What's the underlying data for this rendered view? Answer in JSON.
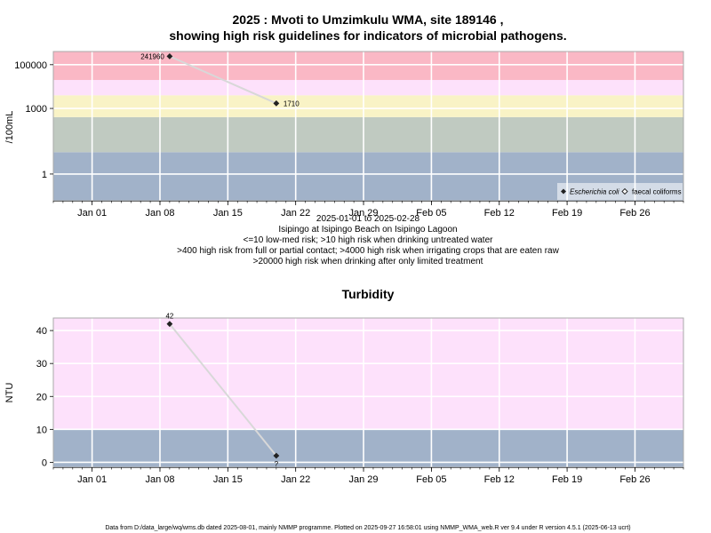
{
  "titles": {
    "main_line1": "2025 : Mvoti to Umzimkulu WMA, site 189146 ,",
    "main_line2": "showing high risk guidelines for indicators of microbial pathogens."
  },
  "notes": [
    "2025-01-01 to 2025-02-28",
    "Isipingo at Isipingo Beach on Isipingo Lagoon",
    "<=10 low-med risk; >10 high risk when drinking untreated water",
    ">400 high risk from full or partial contact; >4000 high risk when irrigating crops that are eaten raw",
    ">20000 high risk when drinking after only limited treatment"
  ],
  "footer": "Data from D:/data_large/wq/wms.db dated 2025-08-01, mainly NMMP programme. Plotted on 2025-09-27 16:58:01 using NMMP_WMA_web.R ver 9.4 under R version 4.5.1 (2025-06-13 ucrt)",
  "legend": {
    "placement": "bottom-right",
    "items": [
      {
        "label": "Escherichia coli",
        "marker": "filled-diamond",
        "italic": true
      },
      {
        "label": "faecal coliforms",
        "marker": "open-diamond",
        "italic": false
      }
    ]
  },
  "colors": {
    "band_low": "#a1b2c9",
    "band_10": "#c0cac1",
    "band_400": "#f9f3c6",
    "band_4000": "#fde1fb",
    "band_20000": "#fab8c5",
    "panel_border": "#a9a9a9",
    "trend_line": "#d8d8d8",
    "marker": "#222222"
  },
  "chart_data": [
    {
      "type": "scatter",
      "title": "",
      "xlabel": "",
      "ylabel": "/100mL",
      "yscale": "log",
      "xlim": [
        "2024-12-28",
        "2025-03-03"
      ],
      "ylim": [
        0.06,
        400000
      ],
      "x_ticks": [
        {
          "date": "2025-01-01",
          "label": "Jan 01"
        },
        {
          "date": "2025-01-08",
          "label": "Jan 08"
        },
        {
          "date": "2025-01-15",
          "label": "Jan 15"
        },
        {
          "date": "2025-01-22",
          "label": "Jan 22"
        },
        {
          "date": "2025-01-29",
          "label": "Jan 29"
        },
        {
          "date": "2025-02-05",
          "label": "Feb 05"
        },
        {
          "date": "2025-02-12",
          "label": "Feb 12"
        },
        {
          "date": "2025-02-19",
          "label": "Feb 19"
        },
        {
          "date": "2025-02-26",
          "label": "Feb 26"
        }
      ],
      "y_ticks": [
        {
          "value": 1,
          "label": "1"
        },
        {
          "value": 1000,
          "label": "1000"
        },
        {
          "value": 100000,
          "label": "100000"
        }
      ],
      "grid": true,
      "bands": [
        {
          "from": 0.06,
          "to": 10,
          "color_key": "band_low"
        },
        {
          "from": 10,
          "to": 400,
          "color_key": "band_10"
        },
        {
          "from": 400,
          "to": 4000,
          "color_key": "band_400"
        },
        {
          "from": 4000,
          "to": 20000,
          "color_key": "band_4000"
        },
        {
          "from": 20000,
          "to": 400000,
          "color_key": "band_20000"
        }
      ],
      "series": [
        {
          "name": "Escherichia coli",
          "marker": "filled-diamond",
          "points": [
            {
              "date": "2025-01-09",
              "value": 241960,
              "label": "241960",
              "label_side": "left"
            },
            {
              "date": "2025-01-20",
              "value": 1710,
              "label": "1710",
              "label_side": "right"
            }
          ]
        }
      ]
    },
    {
      "type": "scatter",
      "title": "Turbidity",
      "xlabel": "",
      "ylabel": "NTU",
      "yscale": "linear",
      "xlim": [
        "2024-12-28",
        "2025-03-03"
      ],
      "ylim": [
        -1.5,
        43.8
      ],
      "x_ticks": [
        {
          "date": "2025-01-01",
          "label": "Jan 01"
        },
        {
          "date": "2025-01-08",
          "label": "Jan 08"
        },
        {
          "date": "2025-01-15",
          "label": "Jan 15"
        },
        {
          "date": "2025-01-22",
          "label": "Jan 22"
        },
        {
          "date": "2025-01-29",
          "label": "Jan 29"
        },
        {
          "date": "2025-02-05",
          "label": "Feb 05"
        },
        {
          "date": "2025-02-12",
          "label": "Feb 12"
        },
        {
          "date": "2025-02-19",
          "label": "Feb 19"
        },
        {
          "date": "2025-02-26",
          "label": "Feb 26"
        }
      ],
      "y_ticks": [
        {
          "value": 0,
          "label": "0"
        },
        {
          "value": 10,
          "label": "10"
        },
        {
          "value": 20,
          "label": "20"
        },
        {
          "value": 30,
          "label": "30"
        },
        {
          "value": 40,
          "label": "40"
        }
      ],
      "grid": true,
      "bands": [
        {
          "from": -1.5,
          "to": 10,
          "color_key": "band_low"
        },
        {
          "from": 10,
          "to": 43.8,
          "color_key": "band_4000"
        }
      ],
      "series": [
        {
          "name": "",
          "marker": "filled-diamond",
          "points": [
            {
              "date": "2025-01-09",
              "value": 42,
              "label": "42",
              "label_side": "above"
            },
            {
              "date": "2025-01-20",
              "value": 2,
              "label": "?",
              "label_side": "below"
            }
          ]
        }
      ]
    }
  ]
}
